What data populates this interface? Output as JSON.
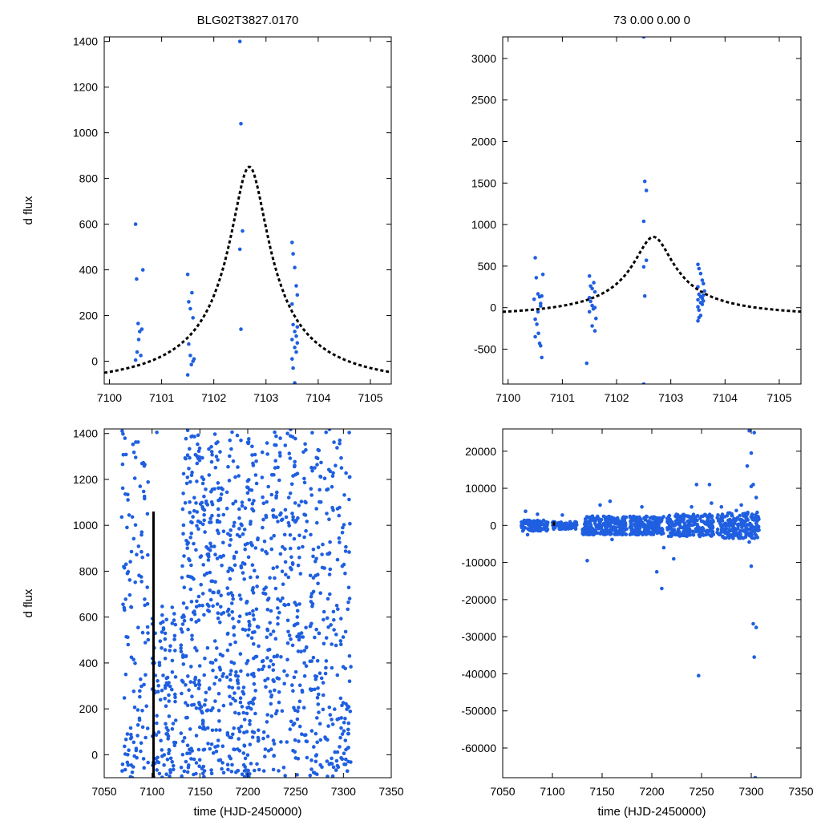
{
  "header": {
    "left_title": "BLG02T3827.0170",
    "right_title": "73  0.00  0.00  0"
  },
  "colors": {
    "points": "#1f5fe0",
    "model": "#000000",
    "frame": "#000000"
  },
  "chart_data": [
    {
      "id": "top-left",
      "type": "scatter",
      "title": "BLG02T3827.0170",
      "ylabel": "d flux",
      "xlabel": "",
      "xlim": [
        7099.9,
        7105.4
      ],
      "ylim": [
        -100,
        1420
      ],
      "xticks": [
        7100,
        7101,
        7102,
        7103,
        7104,
        7105
      ],
      "yticks": [
        0,
        200,
        400,
        600,
        800,
        1000,
        1200,
        1400
      ],
      "model": {
        "style": "dotted",
        "kind": "paczynski",
        "t0": 7102.68,
        "tE": 2.9,
        "u0": 0.125,
        "base": 1.0,
        "amp": 135
      },
      "series": [
        {
          "name": "data",
          "points": [
            [
              7100.5,
              600
            ],
            [
              7100.52,
              360
            ],
            [
              7100.55,
              165
            ],
            [
              7100.58,
              130
            ],
            [
              7100.6,
              25
            ],
            [
              7100.62,
              140
            ],
            [
              7100.64,
              400
            ],
            [
              7100.5,
              5
            ],
            [
              7100.53,
              40
            ],
            [
              7100.56,
              95
            ],
            [
              7101.5,
              380
            ],
            [
              7101.52,
              260
            ],
            [
              7101.55,
              230
            ],
            [
              7101.58,
              300
            ],
            [
              7101.6,
              190
            ],
            [
              7101.52,
              75
            ],
            [
              7101.55,
              25
            ],
            [
              7101.57,
              -15
            ],
            [
              7101.6,
              0
            ],
            [
              7101.5,
              -60
            ],
            [
              7101.62,
              10
            ],
            [
              7102.5,
              1400
            ],
            [
              7102.52,
              1040
            ],
            [
              7102.55,
              570
            ],
            [
              7102.5,
              490
            ],
            [
              7102.52,
              140
            ],
            [
              7103.5,
              520
            ],
            [
              7103.52,
              470
            ],
            [
              7103.55,
              410
            ],
            [
              7103.58,
              330
            ],
            [
              7103.6,
              290
            ],
            [
              7103.5,
              250
            ],
            [
              7103.52,
              160
            ],
            [
              7103.55,
              130
            ],
            [
              7103.58,
              110
            ],
            [
              7103.6,
              80
            ],
            [
              7103.5,
              95
            ],
            [
              7103.55,
              60
            ],
            [
              7103.58,
              40
            ],
            [
              7103.5,
              10
            ],
            [
              7103.52,
              -30
            ],
            [
              7103.55,
              -95
            ],
            [
              7103.6,
              150
            ]
          ]
        }
      ]
    },
    {
      "id": "top-right",
      "type": "scatter",
      "title": "73  0.00  0.00  0",
      "ylabel": "",
      "xlabel": "",
      "xlim": [
        7099.9,
        7105.4
      ],
      "ylim": [
        -920,
        3260
      ],
      "xticks": [
        7100,
        7101,
        7102,
        7103,
        7104,
        7105
      ],
      "yticks": [
        -500,
        0,
        500,
        1000,
        1500,
        2000,
        2500,
        3000
      ],
      "model": {
        "style": "dotted",
        "kind": "paczynski",
        "t0": 7102.68,
        "tE": 2.9,
        "u0": 0.125,
        "base": 1.0,
        "amp": 135
      },
      "series": [
        {
          "name": "data",
          "points": [
            [
              7100.5,
              600
            ],
            [
              7100.52,
              360
            ],
            [
              7100.55,
              165
            ],
            [
              7100.58,
              130
            ],
            [
              7100.6,
              20
            ],
            [
              7100.62,
              140
            ],
            [
              7100.64,
              400
            ],
            [
              7100.5,
              -140
            ],
            [
              7100.53,
              -200
            ],
            [
              7100.56,
              -310
            ],
            [
              7100.58,
              -430
            ],
            [
              7100.6,
              -460
            ],
            [
              7100.62,
              -600
            ],
            [
              7100.5,
              -350
            ],
            [
              7100.55,
              -50
            ],
            [
              7100.6,
              50
            ],
            [
              7100.48,
              100
            ],
            [
              7101.5,
              380
            ],
            [
              7101.52,
              260
            ],
            [
              7101.55,
              230
            ],
            [
              7101.58,
              300
            ],
            [
              7101.6,
              190
            ],
            [
              7101.52,
              75
            ],
            [
              7101.55,
              25
            ],
            [
              7101.57,
              -15
            ],
            [
              7101.6,
              0
            ],
            [
              7101.5,
              -50
            ],
            [
              7101.62,
              -130
            ],
            [
              7101.55,
              -220
            ],
            [
              7101.6,
              -280
            ],
            [
              7101.45,
              -670
            ],
            [
              7101.5,
              120
            ],
            [
              7102.5,
              3260
            ],
            [
              7102.52,
              1520
            ],
            [
              7102.55,
              1410
            ],
            [
              7102.5,
              1040
            ],
            [
              7102.55,
              570
            ],
            [
              7102.5,
              490
            ],
            [
              7102.52,
              140
            ],
            [
              7102.5,
              -920
            ],
            [
              7103.5,
              520
            ],
            [
              7103.52,
              470
            ],
            [
              7103.55,
              410
            ],
            [
              7103.58,
              330
            ],
            [
              7103.6,
              290
            ],
            [
              7103.5,
              250
            ],
            [
              7103.52,
              160
            ],
            [
              7103.55,
              130
            ],
            [
              7103.58,
              110
            ],
            [
              7103.6,
              80
            ],
            [
              7103.5,
              95
            ],
            [
              7103.55,
              60
            ],
            [
              7103.58,
              40
            ],
            [
              7103.5,
              10
            ],
            [
              7103.52,
              -30
            ],
            [
              7103.55,
              -95
            ],
            [
              7103.5,
              -160
            ],
            [
              7103.52,
              -120
            ],
            [
              7103.6,
              150
            ],
            [
              7103.62,
              200
            ]
          ]
        }
      ]
    },
    {
      "id": "bottom-left",
      "type": "scatter",
      "title": "",
      "ylabel": "d flux",
      "xlabel": "time (HJD-2450000)",
      "xlim": [
        7050,
        7350
      ],
      "ylim": [
        -100,
        1420
      ],
      "xticks": [
        7050,
        7100,
        7150,
        7200,
        7250,
        7300,
        7350
      ],
      "yticks": [
        0,
        200,
        400,
        600,
        800,
        1000,
        1200,
        1400
      ],
      "model": {
        "style": "solid",
        "kind": "spike",
        "x": 7101.5,
        "ymax": 1060,
        "ymin": -100
      },
      "dense_scatter": {
        "seed": 17,
        "segments": [
          {
            "xmin": 7068,
            "xmax": 7096,
            "n": 120,
            "ymin": -100,
            "ymax": 1420
          },
          {
            "xmin": 7100,
            "xmax": 7125,
            "n": 110,
            "ymin": -100,
            "ymax": 650
          },
          {
            "xmin": 7130,
            "xmax": 7175,
            "n": 330,
            "ymin": -100,
            "ymax": 1420
          },
          {
            "xmin": 7178,
            "xmax": 7212,
            "n": 250,
            "ymin": -100,
            "ymax": 1420
          },
          {
            "xmin": 7215,
            "xmax": 7262,
            "n": 260,
            "ymin": -100,
            "ymax": 1420
          },
          {
            "xmin": 7265,
            "xmax": 7308,
            "n": 230,
            "ymin": -100,
            "ymax": 1420
          }
        ]
      },
      "series": [
        {
          "name": "data",
          "points": [
            [
              7082,
              1205
            ],
            [
              7105,
              1405
            ],
            [
              7090,
              860
            ],
            [
              7095,
              730
            ],
            [
              7075,
              480
            ]
          ]
        }
      ]
    },
    {
      "id": "bottom-right",
      "type": "scatter",
      "title": "",
      "ylabel": "",
      "xlabel": "time (HJD-2450000)",
      "xlim": [
        7050,
        7350
      ],
      "ylim": [
        -68000,
        26000
      ],
      "xticks": [
        7050,
        7100,
        7150,
        7200,
        7250,
        7300,
        7350
      ],
      "yticks": [
        -60000,
        -50000,
        -40000,
        -30000,
        -20000,
        -10000,
        0,
        10000,
        20000
      ],
      "model": {
        "style": "solid",
        "kind": "spike",
        "x": 7101.5,
        "ymax": 1060,
        "ymin": -100
      },
      "dense_scatter": {
        "seed": 29,
        "segments": [
          {
            "xmin": 7068,
            "xmax": 7096,
            "n": 90,
            "ymin": -1500,
            "ymax": 1500
          },
          {
            "xmin": 7100,
            "xmax": 7125,
            "n": 80,
            "ymin": -1000,
            "ymax": 1000
          },
          {
            "xmin": 7130,
            "xmax": 7175,
            "n": 250,
            "ymin": -2500,
            "ymax": 2500
          },
          {
            "xmin": 7178,
            "xmax": 7212,
            "n": 200,
            "ymin": -2500,
            "ymax": 2500
          },
          {
            "xmin": 7215,
            "xmax": 7262,
            "n": 220,
            "ymin": -3000,
            "ymax": 3000
          },
          {
            "xmin": 7265,
            "xmax": 7308,
            "n": 200,
            "ymin": -3500,
            "ymax": 3500
          }
        ]
      },
      "series": [
        {
          "name": "data",
          "points": [
            [
              7073,
              3800
            ],
            [
              7085,
              3000
            ],
            [
              7075,
              -2500
            ],
            [
              7110,
              2800
            ],
            [
              7135,
              -9500
            ],
            [
              7148,
              5500
            ],
            [
              7158,
              6500
            ],
            [
              7160,
              -3800
            ],
            [
              7190,
              5000
            ],
            [
              7205,
              -12500
            ],
            [
              7210,
              -17000
            ],
            [
              7212,
              -6000
            ],
            [
              7222,
              -9000
            ],
            [
              7245,
              11000
            ],
            [
              7247,
              -40500
            ],
            [
              7258,
              11000
            ],
            [
              7260,
              6000
            ],
            [
              7240,
              5000
            ],
            [
              7270,
              5000
            ],
            [
              7285,
              4000
            ],
            [
              7290,
              5500
            ],
            [
              7298,
              25500
            ],
            [
              7300,
              19500
            ],
            [
              7303,
              25000
            ],
            [
              7296,
              16000
            ],
            [
              7302,
              11000
            ],
            [
              7305,
              7500
            ],
            [
              7298,
              -4500
            ],
            [
              7300,
              -11000
            ],
            [
              7302,
              -26500
            ],
            [
              7305,
              -27500
            ],
            [
              7303,
              -35500
            ],
            [
              7304,
              -68000
            ],
            [
              7300,
              10500
            ],
            [
              7306,
              3500
            ]
          ]
        }
      ]
    }
  ]
}
